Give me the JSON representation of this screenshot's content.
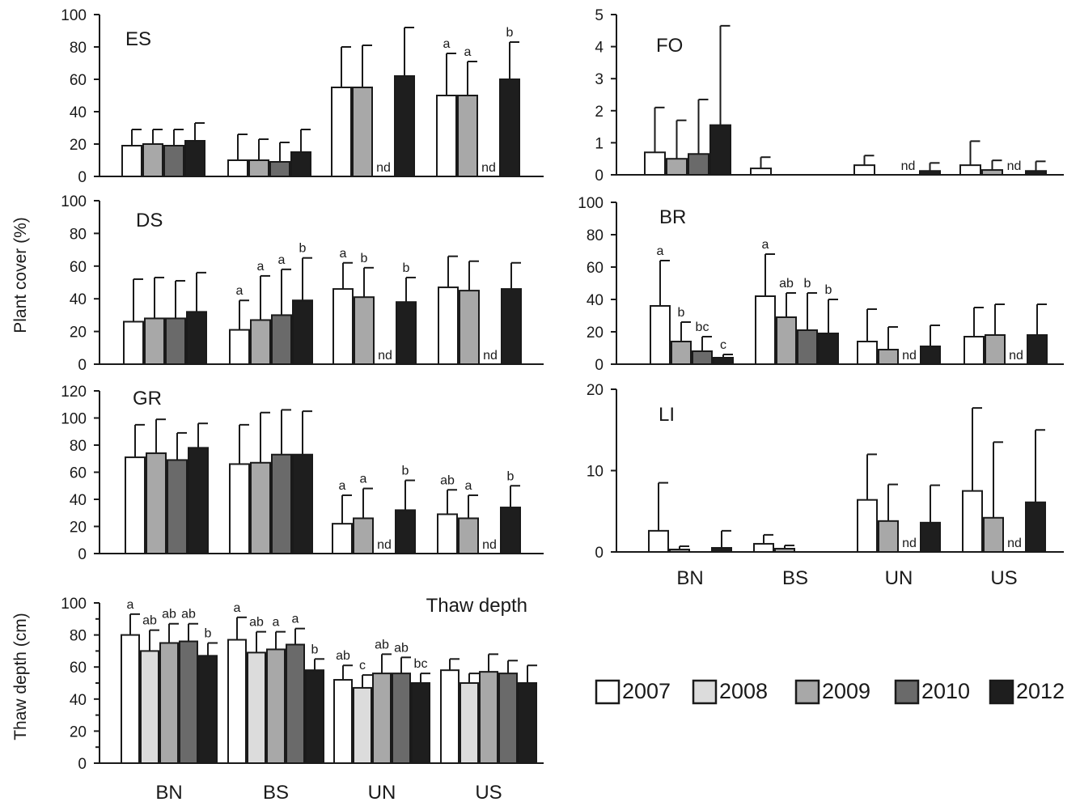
{
  "figure": {
    "y_label_cover": "Plant cover (%)",
    "y_label_thaw": "Thaw depth (cm)"
  },
  "legend": {
    "items": [
      {
        "label": "2007",
        "color": "#ffffff"
      },
      {
        "label": "2008",
        "color": "#dcdcdc"
      },
      {
        "label": "2009",
        "color": "#a8a8a8"
      },
      {
        "label": "2010",
        "color": "#6a6a6a"
      },
      {
        "label": "2012",
        "color": "#1e1e1e"
      }
    ]
  },
  "nd_label": "nd",
  "chart_data": [
    {
      "type": "bar",
      "id": "ES",
      "title": "ES",
      "categories": [
        "BN",
        "BS",
        "UN",
        "US"
      ],
      "series_labels": [
        "2007",
        "2008",
        "2009",
        "2010",
        "2012"
      ],
      "ylim": [
        0,
        100
      ],
      "yticks": [
        0,
        20,
        40,
        60,
        80,
        100
      ],
      "values": [
        [
          19,
          20,
          19,
          22
        ],
        [
          10,
          10,
          9,
          15
        ],
        [
          55,
          55,
          null,
          62
        ],
        [
          50,
          50,
          null,
          60
        ]
      ],
      "errors": [
        [
          10,
          9,
          10,
          11
        ],
        [
          16,
          13,
          12,
          14
        ],
        [
          25,
          26,
          null,
          30
        ],
        [
          26,
          21,
          null,
          23
        ]
      ],
      "letters": [
        [
          "",
          "",
          "",
          ""
        ],
        [
          "",
          "",
          "",
          ""
        ],
        [
          "",
          "",
          "",
          ""
        ],
        [
          "a",
          "a",
          "",
          "b"
        ]
      ],
      "nd": [
        null,
        null,
        2,
        2
      ],
      "show_xlabels": false
    },
    {
      "type": "bar",
      "id": "FO",
      "title": "FO",
      "categories": [
        "BN",
        "BS",
        "UN",
        "US"
      ],
      "series_labels": [
        "2007",
        "2008",
        "2009",
        "2010",
        "2012"
      ],
      "ylim": [
        0,
        5
      ],
      "yticks": [
        0,
        1,
        2,
        3,
        4,
        5
      ],
      "values": [
        [
          0.7,
          0.5,
          0.65,
          1.55
        ],
        [
          0.2,
          0,
          0,
          0
        ],
        [
          0.3,
          0,
          null,
          0.12
        ],
        [
          0.3,
          0.15,
          null,
          0.12
        ]
      ],
      "errors": [
        [
          1.4,
          1.2,
          1.7,
          3.1
        ],
        [
          0.35,
          0,
          0,
          0
        ],
        [
          0.3,
          0,
          null,
          0.25
        ],
        [
          0.75,
          0.3,
          null,
          0.3
        ]
      ],
      "letters": [
        [
          "",
          "",
          "",
          ""
        ],
        [
          "",
          "",
          "",
          ""
        ],
        [
          "",
          "",
          "",
          ""
        ],
        [
          "",
          "",
          "",
          ""
        ]
      ],
      "nd": [
        null,
        null,
        2,
        2
      ],
      "show_xlabels": false
    },
    {
      "type": "bar",
      "id": "DS",
      "title": "DS",
      "categories": [
        "BN",
        "BS",
        "UN",
        "US"
      ],
      "series_labels": [
        "2007",
        "2008",
        "2009",
        "2010",
        "2012"
      ],
      "ylim": [
        0,
        100
      ],
      "yticks": [
        0,
        20,
        40,
        60,
        80,
        100
      ],
      "values": [
        [
          26,
          28,
          28,
          32
        ],
        [
          21,
          27,
          30,
          39
        ],
        [
          46,
          41,
          null,
          38
        ],
        [
          47,
          45,
          null,
          46
        ]
      ],
      "errors": [
        [
          26,
          25,
          23,
          24
        ],
        [
          18,
          27,
          28,
          26
        ],
        [
          16,
          18,
          null,
          15
        ],
        [
          19,
          18,
          null,
          16
        ]
      ],
      "letters": [
        [
          "",
          "",
          "",
          ""
        ],
        [
          "a",
          "a",
          "a",
          "b"
        ],
        [
          "a",
          "b",
          "",
          "b"
        ],
        [
          "",
          "",
          "",
          ""
        ]
      ],
      "nd": [
        null,
        null,
        2,
        2
      ],
      "show_xlabels": false
    },
    {
      "type": "bar",
      "id": "BR",
      "title": "BR",
      "categories": [
        "BN",
        "BS",
        "UN",
        "US"
      ],
      "series_labels": [
        "2007",
        "2008",
        "2009",
        "2010",
        "2012"
      ],
      "ylim": [
        0,
        100
      ],
      "yticks": [
        0,
        20,
        40,
        60,
        80,
        100
      ],
      "values": [
        [
          36,
          14,
          8,
          4
        ],
        [
          42,
          29,
          21,
          19
        ],
        [
          14,
          9,
          null,
          11
        ],
        [
          17,
          18,
          null,
          18
        ]
      ],
      "errors": [
        [
          28,
          12,
          9,
          2
        ],
        [
          26,
          15,
          23,
          21
        ],
        [
          20,
          14,
          null,
          13
        ],
        [
          18,
          19,
          null,
          19
        ]
      ],
      "letters": [
        [
          "a",
          "b",
          "bc",
          "c"
        ],
        [
          "a",
          "ab",
          "b",
          "b"
        ],
        [
          "",
          "",
          "",
          ""
        ],
        [
          "",
          "",
          "",
          ""
        ]
      ],
      "nd": [
        null,
        null,
        2,
        2
      ],
      "show_xlabels": false
    },
    {
      "type": "bar",
      "id": "GR",
      "title": "GR",
      "categories": [
        "BN",
        "BS",
        "UN",
        "US"
      ],
      "series_labels": [
        "2007",
        "2008",
        "2009",
        "2010",
        "2012"
      ],
      "ylim": [
        0,
        120
      ],
      "yticks": [
        0,
        20,
        40,
        60,
        80,
        100,
        120
      ],
      "values": [
        [
          71,
          74,
          69,
          78
        ],
        [
          66,
          67,
          73,
          73
        ],
        [
          22,
          26,
          null,
          32
        ],
        [
          29,
          26,
          null,
          34
        ]
      ],
      "errors": [
        [
          24,
          25,
          20,
          18
        ],
        [
          29,
          37,
          33,
          32
        ],
        [
          21,
          22,
          null,
          22
        ],
        [
          18,
          17,
          null,
          16
        ]
      ],
      "letters": [
        [
          "",
          "",
          "",
          ""
        ],
        [
          "",
          "",
          "",
          ""
        ],
        [
          "a",
          "a",
          "",
          "b"
        ],
        [
          "ab",
          "a",
          "",
          "b"
        ]
      ],
      "nd": [
        null,
        null,
        2,
        2
      ],
      "show_xlabels": false
    },
    {
      "type": "bar",
      "id": "LI",
      "title": "LI",
      "categories": [
        "BN",
        "BS",
        "UN",
        "US"
      ],
      "series_labels": [
        "2007",
        "2008",
        "2009",
        "2010",
        "2012"
      ],
      "ylim": [
        0,
        20
      ],
      "yticks": [
        0,
        10,
        20
      ],
      "values": [
        [
          2.6,
          0.3,
          0,
          0.5
        ],
        [
          1.0,
          0.4,
          0,
          0
        ],
        [
          6.4,
          3.8,
          null,
          3.6
        ],
        [
          7.5,
          4.2,
          null,
          6.1
        ]
      ],
      "errors": [
        [
          5.9,
          0.4,
          0,
          2.1
        ],
        [
          1.1,
          0.4,
          0,
          0
        ],
        [
          5.6,
          4.5,
          null,
          4.6
        ],
        [
          10.2,
          9.3,
          null,
          8.9
        ]
      ],
      "letters": [
        [
          "",
          "",
          "",
          ""
        ],
        [
          "",
          "",
          "",
          ""
        ],
        [
          "",
          "",
          "",
          ""
        ],
        [
          "",
          "",
          "",
          ""
        ]
      ],
      "nd": [
        null,
        null,
        2,
        2
      ],
      "show_xlabels": true
    },
    {
      "type": "bar",
      "id": "TD",
      "title": "Thaw depth",
      "categories": [
        "BN",
        "BS",
        "UN",
        "US"
      ],
      "series_labels": [
        "2007",
        "2008",
        "2009",
        "2010",
        "2012"
      ],
      "ylim": [
        0,
        100
      ],
      "yticks": [
        0,
        20,
        40,
        60,
        80,
        100
      ],
      "values": [
        [
          80,
          70,
          75,
          76,
          67
        ],
        [
          77,
          69,
          71,
          74,
          58
        ],
        [
          52,
          47,
          56,
          56,
          50
        ],
        [
          58,
          50,
          57,
          56,
          50
        ]
      ],
      "errors": [
        [
          13,
          13,
          12,
          11,
          8
        ],
        [
          14,
          13,
          11,
          10,
          7
        ],
        [
          9,
          8,
          12,
          10,
          6
        ],
        [
          7,
          6,
          11,
          8,
          11
        ]
      ],
      "letters": [
        [
          "a",
          "ab",
          "ab",
          "ab",
          "b"
        ],
        [
          "a",
          "ab",
          "a",
          "a",
          "b"
        ],
        [
          "ab",
          "c",
          "ab",
          "ab",
          "bc"
        ],
        [
          "",
          "",
          "",
          "",
          ""
        ]
      ],
      "nd": [
        null,
        null,
        null,
        null
      ],
      "show_xlabels": true
    }
  ]
}
